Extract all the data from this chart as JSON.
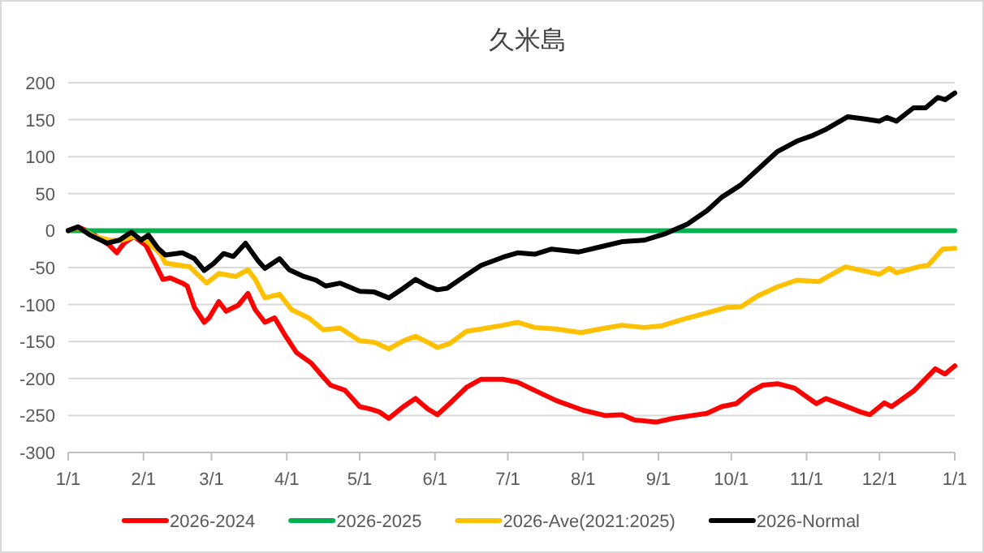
{
  "chart_data": {
    "type": "line",
    "title": "久米島",
    "xlim": [
      "2026-01-01",
      "2027-01-01"
    ],
    "xticks": [
      {
        "value": "2026-01-01",
        "label": "1/1"
      },
      {
        "value": "2026-02-01",
        "label": "2/1"
      },
      {
        "value": "2026-03-01",
        "label": "3/1"
      },
      {
        "value": "2026-04-01",
        "label": "4/1"
      },
      {
        "value": "2026-05-01",
        "label": "5/1"
      },
      {
        "value": "2026-06-01",
        "label": "6/1"
      },
      {
        "value": "2026-07-01",
        "label": "7/1"
      },
      {
        "value": "2026-08-01",
        "label": "8/1"
      },
      {
        "value": "2026-09-01",
        "label": "9/1"
      },
      {
        "value": "2026-10-01",
        "label": "10/1"
      },
      {
        "value": "2026-11-01",
        "label": "11/1"
      },
      {
        "value": "2026-12-01",
        "label": "12/1"
      },
      {
        "value": "2027-01-01",
        "label": "1/1"
      }
    ],
    "ylim": [
      -300,
      200
    ],
    "yticks": [
      -300,
      -250,
      -200,
      -150,
      -100,
      -50,
      0,
      50,
      100,
      150,
      200
    ],
    "grid": "y",
    "legend": "bottom",
    "marker": "none",
    "line_style": "solid",
    "series": [
      {
        "name": "2026-2024",
        "color": "#ff0000",
        "x": [
          "2026-01-01",
          "2026-01-05",
          "2026-01-10",
          "2026-01-18",
          "2026-01-21",
          "2026-01-24",
          "2026-01-28",
          "2026-02-02",
          "2026-02-06",
          "2026-02-09",
          "2026-02-12",
          "2026-02-17",
          "2026-02-19",
          "2026-02-22",
          "2026-02-26",
          "2026-02-28",
          "2026-03-04",
          "2026-03-07",
          "2026-03-12",
          "2026-03-16",
          "2026-03-19",
          "2026-03-23",
          "2026-03-27",
          "2026-03-31",
          "2026-04-05",
          "2026-04-11",
          "2026-04-16",
          "2026-04-19",
          "2026-04-25",
          "2026-05-01",
          "2026-05-05",
          "2026-05-09",
          "2026-05-13",
          "2026-05-19",
          "2026-05-24",
          "2026-05-29",
          "2026-06-02",
          "2026-06-07",
          "2026-06-14",
          "2026-06-20",
          "2026-06-29",
          "2026-07-05",
          "2026-07-12",
          "2026-07-21",
          "2026-08-01",
          "2026-08-10",
          "2026-08-17",
          "2026-08-22",
          "2026-08-31",
          "2026-09-07",
          "2026-09-15",
          "2026-09-21",
          "2026-09-27",
          "2026-10-03",
          "2026-10-09",
          "2026-10-14",
          "2026-10-20",
          "2026-10-27",
          "2026-11-05",
          "2026-11-09",
          "2026-11-16",
          "2026-11-23",
          "2026-11-27",
          "2026-12-03",
          "2026-12-06",
          "2026-12-15",
          "2026-12-24",
          "2026-12-28",
          "2027-01-01"
        ],
        "values": [
          0,
          5,
          -2,
          -20,
          -30,
          -17,
          -8,
          -20,
          -46,
          -66,
          -64,
          -71,
          -75,
          -104,
          -124,
          -118,
          -96,
          -109,
          -101,
          -85,
          -107,
          -124,
          -118,
          -140,
          -165,
          -179,
          -198,
          -209,
          -216,
          -238,
          -241,
          -245,
          -254,
          -238,
          -227,
          -241,
          -249,
          -234,
          -212,
          -201,
          -201,
          -205,
          -216,
          -230,
          -243,
          -250,
          -249,
          -256,
          -259,
          -254,
          -250,
          -247,
          -238,
          -234,
          -218,
          -209,
          -207,
          -213,
          -234,
          -227,
          -236,
          -245,
          -249,
          -233,
          -238,
          -217,
          -187,
          -194,
          -183
        ]
      },
      {
        "name": "2026-2025",
        "color": "#00b050",
        "x": [
          "2026-01-01",
          "2027-01-01"
        ],
        "values": [
          0,
          0
        ]
      },
      {
        "name": "2026-Ave(2021:2025)",
        "color": "#ffc000",
        "x": [
          "2026-01-01",
          "2026-01-05",
          "2026-01-12",
          "2026-01-18",
          "2026-01-23",
          "2026-01-28",
          "2026-02-02",
          "2026-02-08",
          "2026-02-10",
          "2026-02-16",
          "2026-02-20",
          "2026-02-27",
          "2026-03-04",
          "2026-03-11",
          "2026-03-16",
          "2026-03-19",
          "2026-03-23",
          "2026-03-29",
          "2026-04-03",
          "2026-04-10",
          "2026-04-16",
          "2026-04-23",
          "2026-05-01",
          "2026-05-07",
          "2026-05-13",
          "2026-05-19",
          "2026-05-24",
          "2026-05-29",
          "2026-06-02",
          "2026-06-07",
          "2026-06-14",
          "2026-06-20",
          "2026-06-29",
          "2026-07-05",
          "2026-07-12",
          "2026-07-21",
          "2026-07-31",
          "2026-08-08",
          "2026-08-17",
          "2026-08-26",
          "2026-09-02",
          "2026-09-11",
          "2026-09-20",
          "2026-09-29",
          "2026-10-05",
          "2026-10-12",
          "2026-10-20",
          "2026-10-28",
          "2026-11-06",
          "2026-11-17",
          "2026-11-24",
          "2026-12-01",
          "2026-12-05",
          "2026-12-08",
          "2026-12-17",
          "2026-12-21",
          "2026-12-27",
          "2027-01-01"
        ],
        "values": [
          0,
          4,
          -8,
          -13,
          -13,
          -8,
          -13,
          -31,
          -44,
          -47,
          -49,
          -71,
          -58,
          -62,
          -53,
          -66,
          -91,
          -86,
          -107,
          -118,
          -134,
          -132,
          -149,
          -151,
          -160,
          -149,
          -143,
          -151,
          -158,
          -153,
          -136,
          -133,
          -128,
          -124,
          -131,
          -133,
          -138,
          -133,
          -128,
          -131,
          -129,
          -120,
          -112,
          -104,
          -103,
          -88,
          -76,
          -67,
          -69,
          -49,
          -54,
          -59,
          -51,
          -57,
          -49,
          -47,
          -25,
          -24
        ]
      },
      {
        "name": "2026-Normal",
        "color": "#000000",
        "x": [
          "2026-01-01",
          "2026-01-05",
          "2026-01-10",
          "2026-01-17",
          "2026-01-22",
          "2026-01-27",
          "2026-01-31",
          "2026-02-03",
          "2026-02-07",
          "2026-02-10",
          "2026-02-17",
          "2026-02-22",
          "2026-02-26",
          "2026-03-02",
          "2026-03-06",
          "2026-03-10",
          "2026-03-15",
          "2026-03-20",
          "2026-03-23",
          "2026-03-29",
          "2026-04-02",
          "2026-04-08",
          "2026-04-13",
          "2026-04-17",
          "2026-04-23",
          "2026-05-01",
          "2026-05-07",
          "2026-05-13",
          "2026-05-19",
          "2026-05-24",
          "2026-05-29",
          "2026-06-02",
          "2026-06-06",
          "2026-06-14",
          "2026-06-20",
          "2026-06-29",
          "2026-07-05",
          "2026-07-12",
          "2026-07-19",
          "2026-07-30",
          "2026-08-08",
          "2026-08-17",
          "2026-08-26",
          "2026-09-04",
          "2026-09-13",
          "2026-09-21",
          "2026-09-27",
          "2026-10-05",
          "2026-10-12",
          "2026-10-20",
          "2026-10-28",
          "2026-11-03",
          "2026-11-09",
          "2026-11-18",
          "2026-11-25",
          "2026-12-01",
          "2026-12-04",
          "2026-12-08",
          "2026-12-15",
          "2026-12-20",
          "2026-12-25",
          "2026-12-28",
          "2027-01-01"
        ],
        "values": [
          0,
          5,
          -6,
          -17,
          -13,
          -2,
          -13,
          -6,
          -24,
          -33,
          -30,
          -38,
          -54,
          -44,
          -31,
          -35,
          -17,
          -40,
          -51,
          -38,
          -53,
          -62,
          -67,
          -75,
          -71,
          -82,
          -83,
          -91,
          -78,
          -66,
          -75,
          -80,
          -78,
          -60,
          -47,
          -36,
          -30,
          -32,
          -25,
          -29,
          -22,
          -15,
          -13,
          -4,
          9,
          27,
          45,
          62,
          83,
          107,
          121,
          128,
          137,
          154,
          151,
          148,
          153,
          148,
          166,
          166,
          180,
          177,
          186
        ]
      }
    ]
  }
}
